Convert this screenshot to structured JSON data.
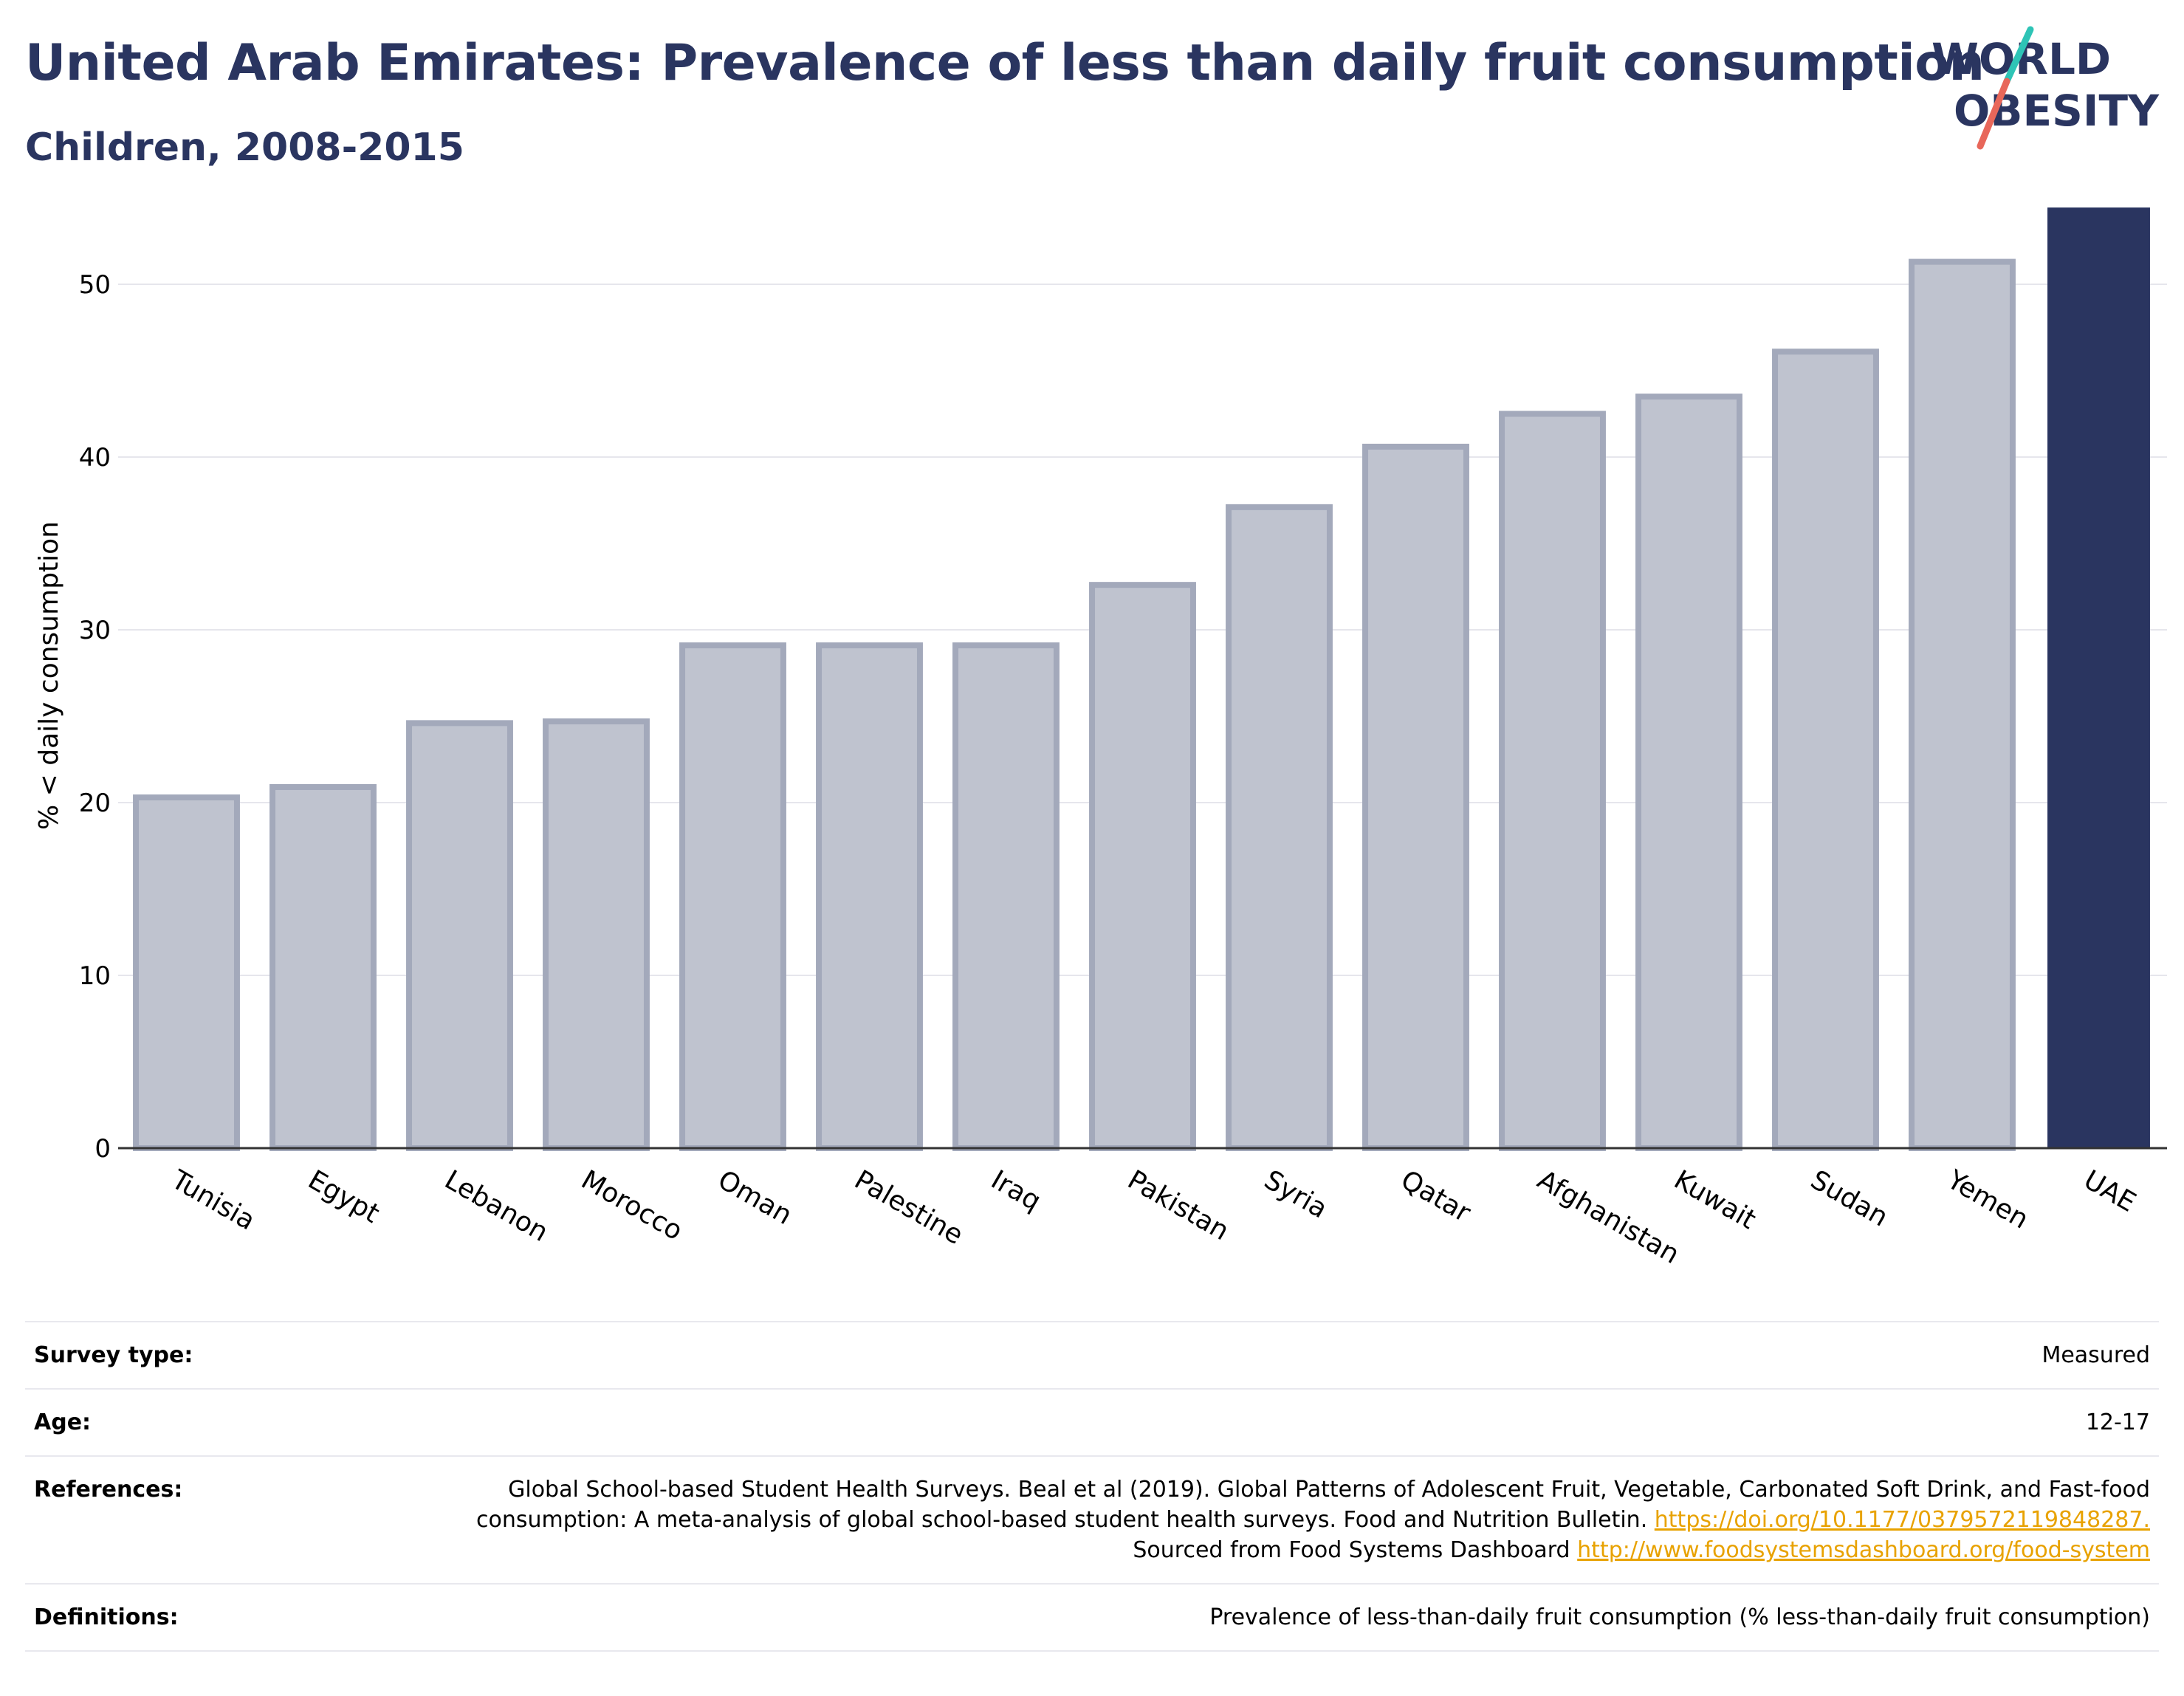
{
  "header": {
    "title": "United Arab Emirates: Prevalence of less than daily fruit consumption",
    "subtitle": "Children, 2008-2015"
  },
  "logo": {
    "line1": "WORLD",
    "line2": "OBESITY",
    "text_color": "#2a3560",
    "slash_colors": [
      "#e8675a",
      "#2ec4b6"
    ]
  },
  "chart_data": {
    "type": "bar",
    "title": "United Arab Emirates: Prevalence of less than daily fruit consumption",
    "subtitle": "Children, 2008-2015",
    "xlabel": "",
    "ylabel": "% < daily consumption",
    "categories": [
      "Tunisia",
      "Egypt",
      "Lebanon",
      "Morocco",
      "Oman",
      "Palestine",
      "Iraq",
      "Pakistan",
      "Syria",
      "Qatar",
      "Afghanistan",
      "Kuwait",
      "Sudan",
      "Yemen",
      "UAE"
    ],
    "values": [
      20.3,
      20.9,
      24.6,
      24.7,
      29.1,
      29.1,
      29.1,
      32.6,
      37.1,
      40.6,
      42.5,
      43.5,
      46.1,
      51.3,
      54.4
    ],
    "highlight": "UAE",
    "ylim": [
      0,
      55
    ],
    "yticks": [
      0,
      10,
      20,
      30,
      40,
      50
    ],
    "grid": true,
    "colors": {
      "highlight": "#2a3560",
      "other_fill": "#bfc3cf",
      "other_stroke": "#a3a9bb",
      "grid": "#e6e6ec",
      "axis": "#333333"
    }
  },
  "meta": {
    "survey_type_label": "Survey type:",
    "survey_type_value": "Measured",
    "age_label": "Age:",
    "age_value": "12-17",
    "references_label": "References:",
    "references_text_1": "Global School-based Student Health Surveys. Beal et al (2019). Global Patterns of Adolescent Fruit, Vegetable, Carbonated Soft Drink, and Fast-food consumption: A meta-analysis of global school-based student health surveys. Food and Nutrition Bulletin.",
    "references_link_1": "https://doi.org/10.1177/0379572119848287.",
    "references_text_2": "Sourced from Food Systems Dashboard",
    "references_link_2": "http://www.foodsystemsdashboard.org/food-system",
    "definitions_label": "Definitions:",
    "definitions_value": "Prevalence of less-than-daily fruit consumption (% less-than-daily fruit consumption)"
  }
}
